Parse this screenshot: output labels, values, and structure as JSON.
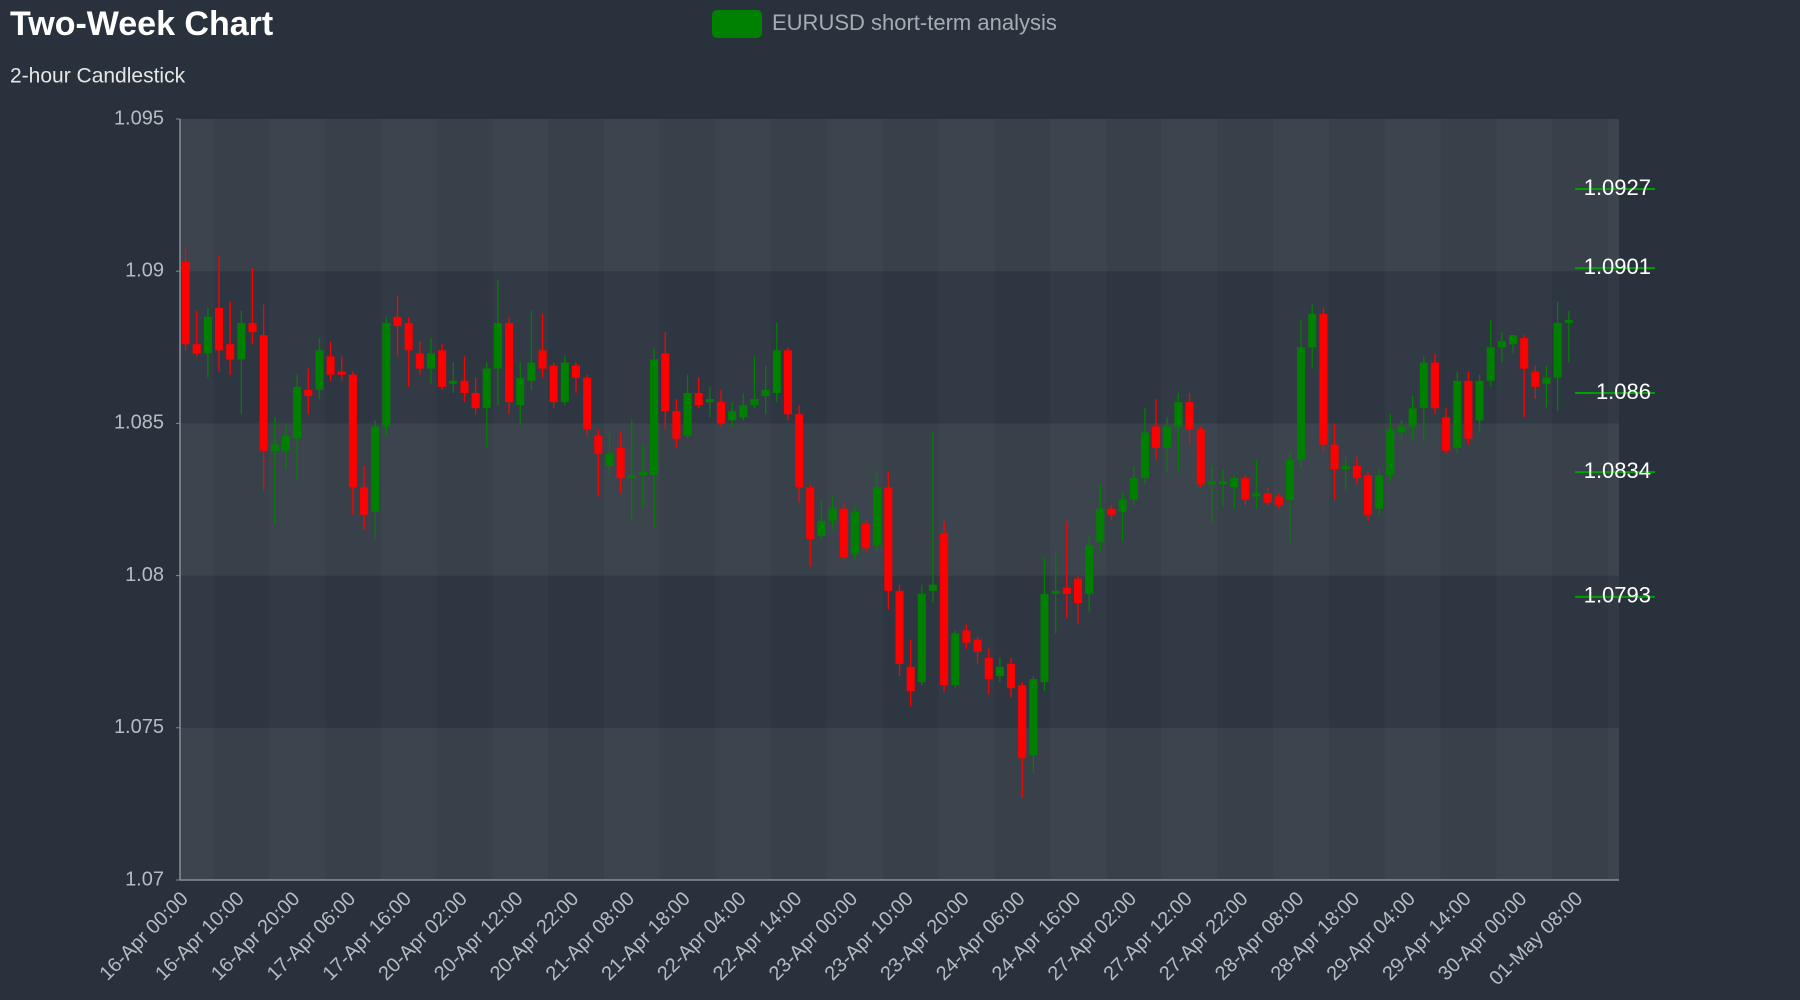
{
  "chart_data": {
    "type": "candlestick",
    "title": "Two-Week Chart",
    "subtitle": "2-hour Candlestick",
    "categories": [
      "16-Apr 00:00",
      null,
      null,
      null,
      null,
      "16-Apr 10:00",
      null,
      null,
      null,
      null,
      "16-Apr 20:00",
      null,
      null,
      null,
      null,
      "17-Apr 06:00",
      null,
      null,
      null,
      null,
      "17-Apr 16:00",
      null,
      null,
      null,
      null,
      "20-Apr 02:00",
      null,
      null,
      null,
      null,
      "20-Apr 12:00",
      null,
      null,
      null,
      null,
      "20-Apr 22:00",
      null,
      null,
      null,
      null,
      "21-Apr 08:00",
      null,
      null,
      null,
      null,
      "21-Apr 18:00",
      null,
      null,
      null,
      null,
      "22-Apr 04:00",
      null,
      null,
      null,
      null,
      "22-Apr 14:00",
      null,
      null,
      null,
      null,
      "23-Apr 00:00",
      null,
      null,
      null,
      null,
      "23-Apr 10:00",
      null,
      null,
      null,
      null,
      "23-Apr 20:00",
      null,
      null,
      null,
      null,
      "24-Apr 06:00",
      null,
      null,
      null,
      null,
      "24-Apr 16:00",
      null,
      null,
      null,
      null,
      "27-Apr 02:00",
      null,
      null,
      null,
      null,
      "27-Apr 12:00",
      null,
      null,
      null,
      null,
      "27-Apr 22:00",
      null,
      null,
      null,
      null,
      "28-Apr 08:00",
      null,
      null,
      null,
      null,
      "28-Apr 18:00",
      null,
      null,
      null,
      null,
      "29-Apr 04:00",
      null,
      null,
      null,
      null,
      "29-Apr 14:00",
      null,
      null,
      null,
      null,
      "30-Apr 00:00",
      null,
      null,
      null,
      null,
      "01-May 08:00"
    ],
    "series": [
      {
        "name": "EURUSD short-term analysis",
        "up_color": "#008000",
        "down_color": "#ff0000",
        "open": [
          1.0903,
          1.0876,
          1.0873,
          1.0888,
          1.0876,
          1.0871,
          1.0883,
          1.0879,
          1.0841,
          1.0841,
          1.0845,
          1.0861,
          1.0861,
          1.0872,
          1.0867,
          1.0866,
          1.0829,
          1.0821,
          1.0849,
          1.0885,
          1.0883,
          1.0873,
          1.0868,
          1.0874,
          1.0863,
          1.0864,
          1.086,
          1.0855,
          1.0868,
          1.0883,
          1.0856,
          1.0864,
          1.0874,
          1.0869,
          1.0857,
          1.0869,
          1.0865,
          1.0846,
          1.0836,
          1.0842,
          1.0832,
          1.0833,
          1.0833,
          1.0873,
          1.0854,
          1.0846,
          1.086,
          1.0857,
          1.0857,
          1.0851,
          1.0852,
          1.0856,
          1.0859,
          1.086,
          1.0874,
          1.0853,
          1.0829,
          1.0813,
          1.0818,
          1.0822,
          1.0807,
          1.0817,
          1.081,
          1.0829,
          1.0795,
          1.077,
          1.0765,
          1.0795,
          1.0814,
          1.0764,
          1.0782,
          1.0779,
          1.0773,
          1.0767,
          1.0771,
          1.0764,
          1.0741,
          1.0765,
          1.0794,
          1.0796,
          1.0799,
          1.0794,
          1.0811,
          1.0822,
          1.0821,
          1.0825,
          1.0832,
          1.0849,
          1.0842,
          1.0849,
          1.0857,
          1.0848,
          1.083,
          1.083,
          1.0829,
          1.0832,
          1.0826,
          1.0827,
          1.0826,
          1.0825,
          1.0838,
          1.0875,
          1.0886,
          1.0843,
          1.0835,
          1.0836,
          1.0833,
          1.0822,
          1.0833,
          1.0847,
          1.0849,
          1.0855,
          1.087,
          1.0852,
          1.0842,
          1.0864,
          1.0851,
          1.0864,
          1.0875,
          1.0876,
          1.0878,
          1.0867,
          1.0863,
          1.0865,
          1.0883,
          null
        ],
        "high": [
          1.0908,
          1.0887,
          1.0888,
          1.0905,
          1.089,
          1.0887,
          1.0901,
          1.0889,
          1.0852,
          1.085,
          1.0866,
          1.0868,
          1.0878,
          1.0877,
          1.0872,
          1.0867,
          1.0836,
          1.0851,
          1.0885,
          1.0892,
          1.0885,
          1.0877,
          1.0878,
          1.0876,
          1.087,
          1.0872,
          1.0865,
          1.087,
          1.0897,
          1.0885,
          1.087,
          1.0887,
          1.0886,
          1.087,
          1.0872,
          1.087,
          1.0866,
          1.0848,
          1.0847,
          1.0847,
          1.0851,
          1.0843,
          1.0875,
          1.088,
          1.0858,
          1.0866,
          1.0865,
          1.0862,
          1.0861,
          1.0857,
          1.086,
          1.0872,
          1.0869,
          1.0883,
          1.0875,
          1.0856,
          1.083,
          1.0825,
          1.0826,
          1.0824,
          1.0823,
          1.0818,
          1.0834,
          1.0834,
          1.0797,
          1.0779,
          1.0797,
          1.0847,
          1.0818,
          1.0782,
          1.0784,
          1.078,
          1.0776,
          1.0773,
          1.0773,
          1.0765,
          1.0767,
          1.0806,
          1.0808,
          1.0818,
          1.08,
          1.0813,
          1.083,
          1.0823,
          1.0827,
          1.0836,
          1.0855,
          1.0858,
          1.0852,
          1.086,
          1.086,
          1.0849,
          1.0836,
          1.0835,
          1.0833,
          1.0833,
          1.0838,
          1.0829,
          1.0827,
          1.0841,
          1.0884,
          1.0889,
          1.0888,
          1.085,
          1.0839,
          1.0839,
          1.0834,
          1.0835,
          1.0853,
          1.0851,
          1.0859,
          1.0872,
          1.0873,
          1.0855,
          1.0867,
          1.0867,
          1.0866,
          1.0884,
          1.088,
          1.0879,
          1.0879,
          1.0869,
          1.0869,
          1.089,
          1.0887,
          null
        ],
        "low": [
          1.0874,
          1.0872,
          1.0865,
          1.0867,
          1.0866,
          1.0853,
          1.0876,
          1.0828,
          1.0817,
          1.0835,
          1.0831,
          1.0853,
          1.0858,
          1.0864,
          1.0864,
          1.082,
          1.0815,
          1.0812,
          1.0846,
          1.0872,
          1.0862,
          1.0866,
          1.0863,
          1.0861,
          1.086,
          1.0857,
          1.0853,
          1.0842,
          1.0856,
          1.0853,
          1.085,
          1.0861,
          1.0865,
          1.0855,
          1.0856,
          1.086,
          1.0846,
          1.0826,
          1.0832,
          1.0827,
          1.0818,
          1.0822,
          1.0816,
          1.0848,
          1.0842,
          1.0845,
          1.0855,
          1.0852,
          1.0849,
          1.0849,
          1.0851,
          1.0855,
          1.0853,
          1.0857,
          1.0851,
          1.0824,
          1.0803,
          1.0812,
          1.0815,
          1.0805,
          1.0805,
          1.0808,
          1.0808,
          1.0789,
          1.0767,
          1.0757,
          1.0764,
          1.0791,
          1.0762,
          1.0763,
          1.0776,
          1.0771,
          1.0761,
          1.0765,
          1.076,
          1.0727,
          1.0735,
          1.0762,
          1.0781,
          1.0786,
          1.0784,
          1.0788,
          1.0808,
          1.0818,
          1.0811,
          1.0823,
          1.083,
          1.0838,
          1.0834,
          1.0834,
          1.0843,
          1.0829,
          1.0817,
          1.0823,
          1.0822,
          1.0823,
          1.0822,
          1.0823,
          1.0822,
          1.0811,
          1.0835,
          1.0868,
          1.084,
          1.0825,
          1.0828,
          1.083,
          1.0818,
          1.082,
          1.0831,
          1.0844,
          1.0845,
          1.0844,
          1.0853,
          1.084,
          1.084,
          1.0843,
          1.0847,
          1.0862,
          1.087,
          1.0873,
          1.0852,
          1.0858,
          1.0855,
          1.0854,
          1.087,
          null
        ],
        "close": [
          1.0876,
          1.0873,
          1.0885,
          1.0874,
          1.0871,
          1.0883,
          1.088,
          1.0841,
          1.0843,
          1.0846,
          1.0862,
          1.0859,
          1.0874,
          1.0866,
          1.0866,
          1.0829,
          1.082,
          1.0849,
          1.0883,
          1.0882,
          1.0874,
          1.0868,
          1.0873,
          1.0862,
          1.0864,
          1.086,
          1.0855,
          1.0868,
          1.0883,
          1.0857,
          1.0865,
          1.087,
          1.0868,
          1.0857,
          1.087,
          1.0865,
          1.0848,
          1.084,
          1.084,
          1.0832,
          1.0833,
          1.0834,
          1.0871,
          1.0854,
          1.0845,
          1.086,
          1.0856,
          1.0858,
          1.085,
          1.0854,
          1.0856,
          1.0858,
          1.0861,
          1.0874,
          1.0853,
          1.0829,
          1.0812,
          1.0818,
          1.0822,
          1.0806,
          1.0821,
          1.0809,
          1.0829,
          1.0795,
          1.0771,
          1.0762,
          1.0794,
          1.0797,
          1.0764,
          1.0781,
          1.0778,
          1.0775,
          1.0766,
          1.077,
          1.0763,
          1.074,
          1.0766,
          1.0794,
          1.0795,
          1.0794,
          1.0791,
          1.081,
          1.0822,
          1.082,
          1.0825,
          1.0832,
          1.0847,
          1.0842,
          1.0849,
          1.0857,
          1.0848,
          1.083,
          1.0831,
          1.0831,
          1.0832,
          1.0825,
          1.0827,
          1.0824,
          1.0823,
          1.0838,
          1.0875,
          1.0886,
          1.0843,
          1.0835,
          1.0836,
          1.0832,
          1.082,
          1.0833,
          1.0848,
          1.0849,
          1.0855,
          1.087,
          1.0855,
          1.0841,
          1.0864,
          1.0845,
          1.0864,
          1.0875,
          1.0877,
          1.0879,
          1.0868,
          1.0862,
          1.0865,
          1.0883,
          1.0884,
          null
        ]
      }
    ],
    "levels": {
      "color": "#00a000",
      "values": [
        1.0927,
        1.0901,
        1.086,
        1.0834,
        1.0793
      ]
    },
    "ylim": [
      1.07,
      1.095
    ],
    "yticks": [
      1.07,
      1.075,
      1.08,
      1.085,
      1.09,
      1.095
    ],
    "grid": true
  }
}
